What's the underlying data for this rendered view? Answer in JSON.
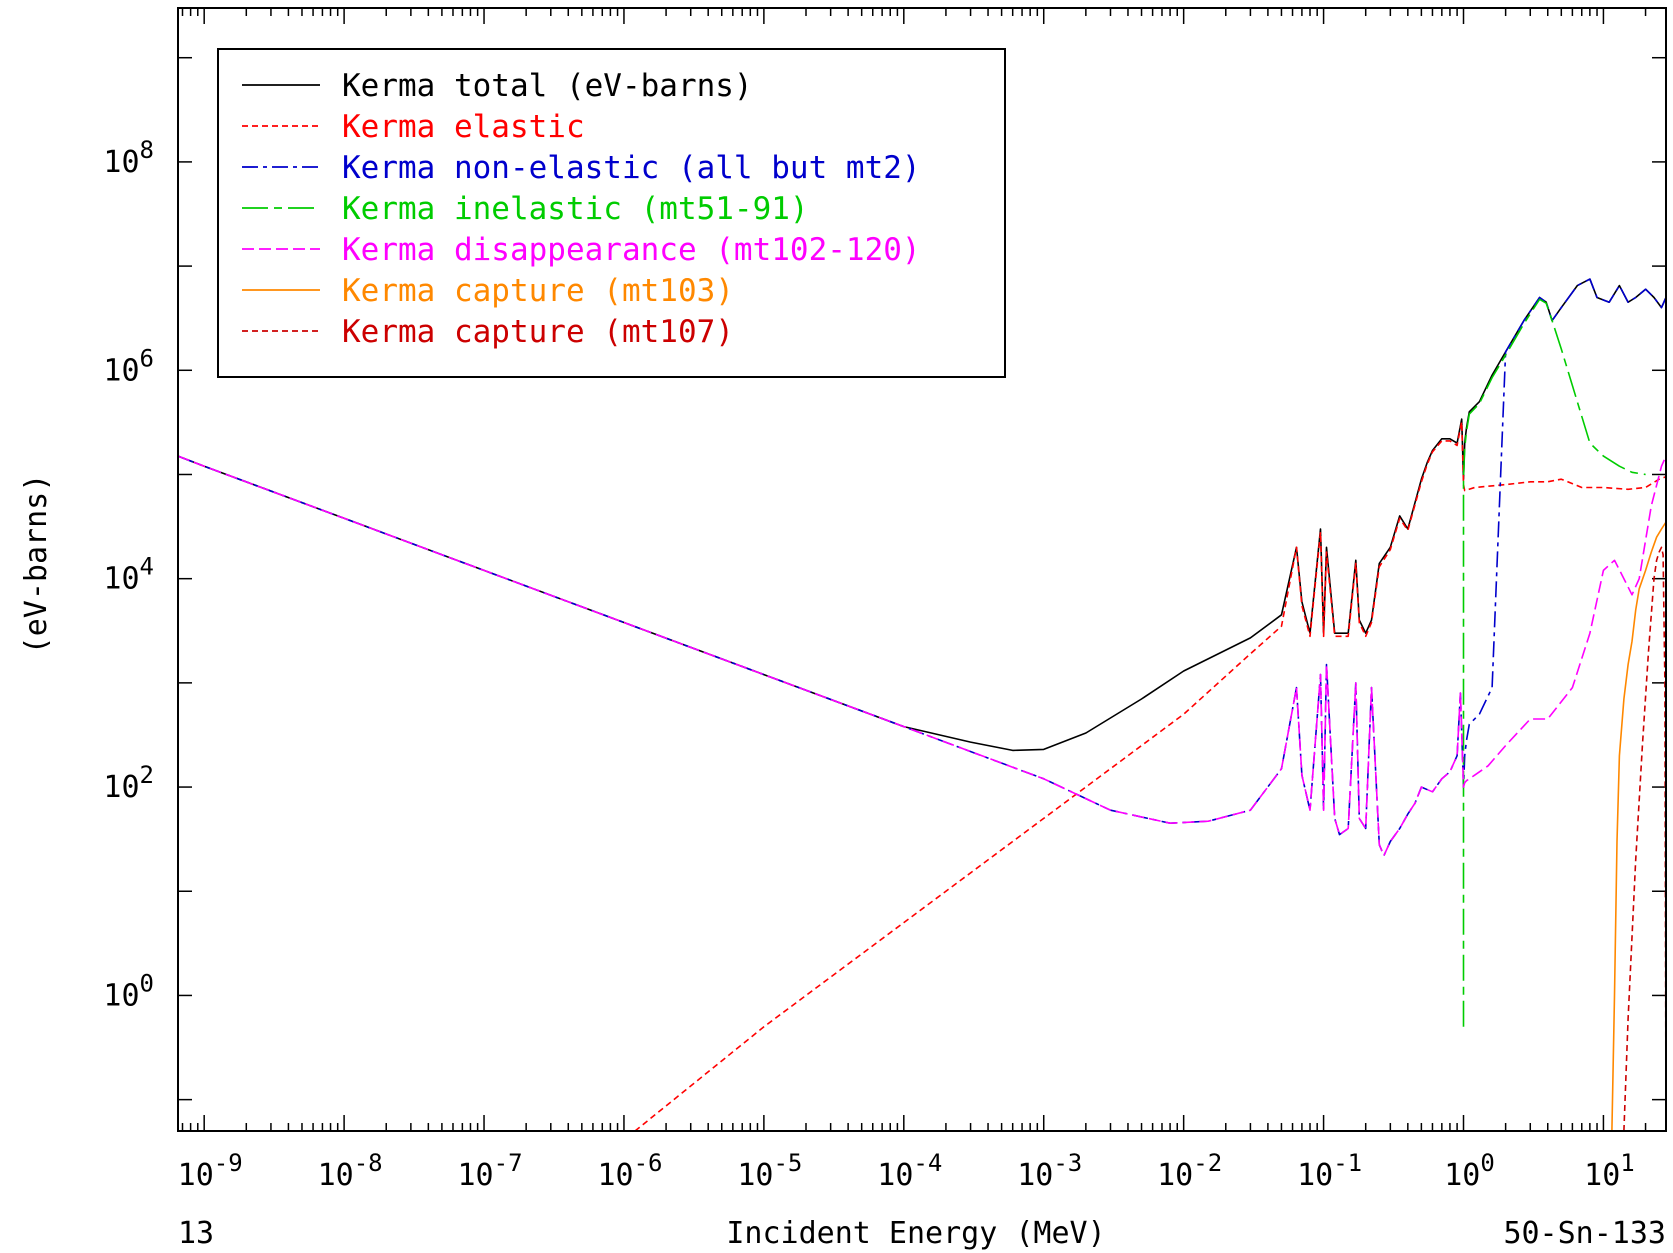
{
  "chart_data": {
    "type": "line",
    "xlabel": "Incident Energy (MeV)",
    "ylabel": "(eV-barns)",
    "x_scale": "log",
    "y_scale": "log",
    "xlim": [
      6.5e-10,
      28
    ],
    "ylim": [
      0.05,
      3000000000.0
    ],
    "x_ticks": [
      {
        "base": "10",
        "exp": "-9",
        "value": 1e-09
      },
      {
        "base": "10",
        "exp": "-8",
        "value": 1e-08
      },
      {
        "base": "10",
        "exp": "-7",
        "value": 1e-07
      },
      {
        "base": "10",
        "exp": "-6",
        "value": 1e-06
      },
      {
        "base": "10",
        "exp": "-5",
        "value": 1e-05
      },
      {
        "base": "10",
        "exp": "-4",
        "value": 0.0001
      },
      {
        "base": "10",
        "exp": "-3",
        "value": 0.001
      },
      {
        "base": "10",
        "exp": "-2",
        "value": 0.01
      },
      {
        "base": "10",
        "exp": "-1",
        "value": 0.1
      },
      {
        "base": "10",
        "exp": "0",
        "value": 1
      },
      {
        "base": "10",
        "exp": "1",
        "value": 10
      }
    ],
    "y_ticks": [
      {
        "base": "10",
        "exp": "0",
        "value": 1
      },
      {
        "base": "10",
        "exp": "2",
        "value": 100
      },
      {
        "base": "10",
        "exp": "4",
        "value": 10000
      },
      {
        "base": "10",
        "exp": "6",
        "value": 1000000
      },
      {
        "base": "10",
        "exp": "8",
        "value": 100000000
      }
    ],
    "grid": false,
    "legend_position": "top-left",
    "bottom_left_label": "13",
    "bottom_right_label": "50-Sn-133",
    "series": [
      {
        "name": "Kerma total  (eV-barns)",
        "color": "#000000",
        "dash": "",
        "x": [
          6.5e-10,
          1e-09,
          1e-08,
          1e-07,
          1e-06,
          1e-05,
          0.0001,
          0.0003,
          0.0006,
          0.001,
          0.002,
          0.005,
          0.01,
          0.03,
          0.05,
          0.064,
          0.07,
          0.08,
          0.095,
          0.1,
          0.105,
          0.12,
          0.15,
          0.17,
          0.18,
          0.2,
          0.22,
          0.25,
          0.3,
          0.35,
          0.4,
          0.5,
          0.55,
          0.6,
          0.7,
          0.8,
          0.9,
          0.97,
          1.0,
          1.02,
          1.05,
          1.1,
          1.3,
          1.6,
          2,
          2.7,
          3.5,
          3.9,
          4.3,
          5,
          6.5,
          8,
          9,
          11,
          13,
          15,
          17,
          20,
          23,
          26,
          28
        ],
        "y": [
          150000,
          120000,
          38000,
          12000,
          3800,
          1200,
          380,
          270,
          225,
          230,
          330,
          700,
          1300,
          2700,
          4500,
          20000,
          6000,
          3000,
          30000,
          3000,
          20000,
          3000,
          3000,
          15000,
          4000,
          3000,
          4000,
          14000,
          20000,
          40000,
          30000,
          90000,
          130000,
          170000,
          220000,
          220000,
          200000,
          340000,
          90000,
          200000,
          280000,
          400000,
          500000,
          900000,
          1500000,
          3000000,
          5000000,
          4500000,
          3000000,
          4000000,
          6500000,
          7500000,
          5000000,
          4500000,
          6500000,
          4500000,
          5000000,
          6000000,
          5000000,
          4000000,
          5000000
        ]
      },
      {
        "name": "Kerma elastic",
        "color": "#ff0000",
        "dash": "6,4",
        "x": [
          1.2e-06,
          1e-05,
          0.0001,
          0.001,
          0.01,
          0.03,
          0.05,
          0.064,
          0.07,
          0.08,
          0.095,
          0.1,
          0.105,
          0.12,
          0.15,
          0.17,
          0.18,
          0.2,
          0.22,
          0.25,
          0.3,
          0.35,
          0.4,
          0.5,
          0.55,
          0.6,
          0.7,
          0.8,
          0.9,
          0.97,
          1.0,
          1.02,
          1.2,
          2,
          3,
          4,
          5,
          7,
          10,
          15,
          20,
          25,
          28
        ],
        "y": [
          0.05,
          0.5,
          5,
          50,
          500,
          1900,
          3500,
          20000,
          5500,
          2800,
          28000,
          2800,
          18000,
          2800,
          2800,
          14000,
          3800,
          2800,
          3800,
          13000,
          19000,
          38000,
          29000,
          85000,
          125000,
          165000,
          210000,
          210000,
          190000,
          320000,
          80000,
          70000,
          75000,
          80000,
          85000,
          85000,
          90000,
          75000,
          75000,
          72000,
          75000,
          90000,
          95000
        ]
      },
      {
        "name": "Kerma non-elastic (all but mt2)",
        "color": "#0000cc",
        "dash": "16,5,4,5",
        "x": [
          6.5e-10,
          1e-09,
          1e-08,
          1e-07,
          1e-06,
          1e-05,
          0.0001,
          0.001,
          0.003,
          0.008,
          0.015,
          0.03,
          0.05,
          0.064,
          0.07,
          0.08,
          0.095,
          0.1,
          0.105,
          0.12,
          0.13,
          0.15,
          0.17,
          0.18,
          0.2,
          0.22,
          0.25,
          0.27,
          0.3,
          0.35,
          0.4,
          0.45,
          0.5,
          0.6,
          0.7,
          0.8,
          0.9,
          0.95,
          1.0,
          1.02,
          1.05,
          1.1,
          1.3,
          1.6,
          2,
          2.7,
          3.5,
          3.9,
          4.3,
          5,
          6.5,
          8,
          9,
          11,
          13,
          15,
          17,
          20,
          23,
          26,
          28
        ],
        "y": [
          150000,
          120000,
          38000,
          12000,
          3800,
          1200,
          380,
          120,
          60,
          45,
          47,
          60,
          150,
          900,
          130,
          60,
          1200,
          60,
          1500,
          50,
          35,
          40,
          1000,
          50,
          40,
          900,
          28,
          22,
          30,
          40,
          55,
          70,
          100,
          90,
          120,
          140,
          200,
          800,
          100,
          200,
          280,
          400,
          500,
          900,
          1500000,
          3000000,
          5000000,
          4500000,
          3000000,
          4000000,
          6500000,
          7500000,
          5000000,
          4500000,
          6500000,
          4500000,
          5000000,
          6000000,
          5000000,
          4000000,
          5000000
        ]
      },
      {
        "name": "Kerma inelastic (mt51-91)",
        "color": "#00cc00",
        "dash": "26,6,8,6",
        "x": [
          1.0,
          1.0,
          1.02,
          1.05,
          1.1,
          1.3,
          1.6,
          2,
          2.7,
          3.5,
          3.9,
          4.3,
          5,
          6.5,
          8,
          10,
          13,
          16,
          20
        ],
        "y": [
          0.5,
          90000,
          180000,
          260000,
          380000,
          480000,
          850000,
          1400000,
          2800000,
          4800000,
          4400000,
          3000000,
          1600000,
          500000,
          200000,
          150000,
          120000,
          105000,
          100000
        ]
      },
      {
        "name": "Kerma disappearance (mt102-120)",
        "color": "#ff00ff",
        "dash": "12,5",
        "x": [
          6.5e-10,
          1e-09,
          1e-08,
          1e-07,
          1e-06,
          1e-05,
          0.0001,
          0.001,
          0.003,
          0.008,
          0.015,
          0.03,
          0.05,
          0.064,
          0.07,
          0.08,
          0.095,
          0.1,
          0.105,
          0.12,
          0.13,
          0.15,
          0.17,
          0.18,
          0.2,
          0.22,
          0.25,
          0.27,
          0.3,
          0.35,
          0.4,
          0.45,
          0.5,
          0.6,
          0.7,
          0.8,
          0.9,
          0.95,
          1.0,
          1.02,
          1.05,
          1.2,
          1.5,
          2,
          3,
          4,
          6,
          8,
          10,
          12,
          14,
          16,
          18,
          22,
          26,
          28
        ],
        "y": [
          150000,
          120000,
          38000,
          12000,
          3800,
          1200,
          380,
          120,
          60,
          45,
          47,
          60,
          150,
          900,
          130,
          60,
          1200,
          60,
          1500,
          50,
          35,
          40,
          1000,
          50,
          40,
          900,
          28,
          22,
          30,
          40,
          55,
          70,
          100,
          90,
          120,
          140,
          200,
          800,
          100,
          110,
          115,
          130,
          160,
          250,
          450,
          450,
          900,
          3000,
          12000,
          15000,
          10000,
          7000,
          10000,
          50000,
          120000,
          150000
        ]
      },
      {
        "name": "Kerma capture (mt103)",
        "color": "#ff8800",
        "dash": "",
        "x": [
          11.5,
          12,
          12.5,
          13,
          14,
          15,
          16,
          17,
          18,
          20,
          22,
          24,
          26,
          28
        ],
        "y": [
          0.05,
          1,
          30,
          200,
          700,
          1500,
          2500,
          5000,
          8000,
          12000,
          18000,
          25000,
          30000,
          35000
        ]
      },
      {
        "name": "Kerma capture (mt107)",
        "color": "#cc0000",
        "dash": "6,4",
        "x": [
          14,
          15,
          17,
          19,
          21,
          23,
          24,
          25,
          26,
          26.7,
          27.5,
          28
        ],
        "y": [
          0.05,
          0.6,
          20,
          250,
          2000,
          10000,
          15000,
          18000,
          20000,
          17000,
          1000,
          0.05
        ]
      }
    ]
  }
}
